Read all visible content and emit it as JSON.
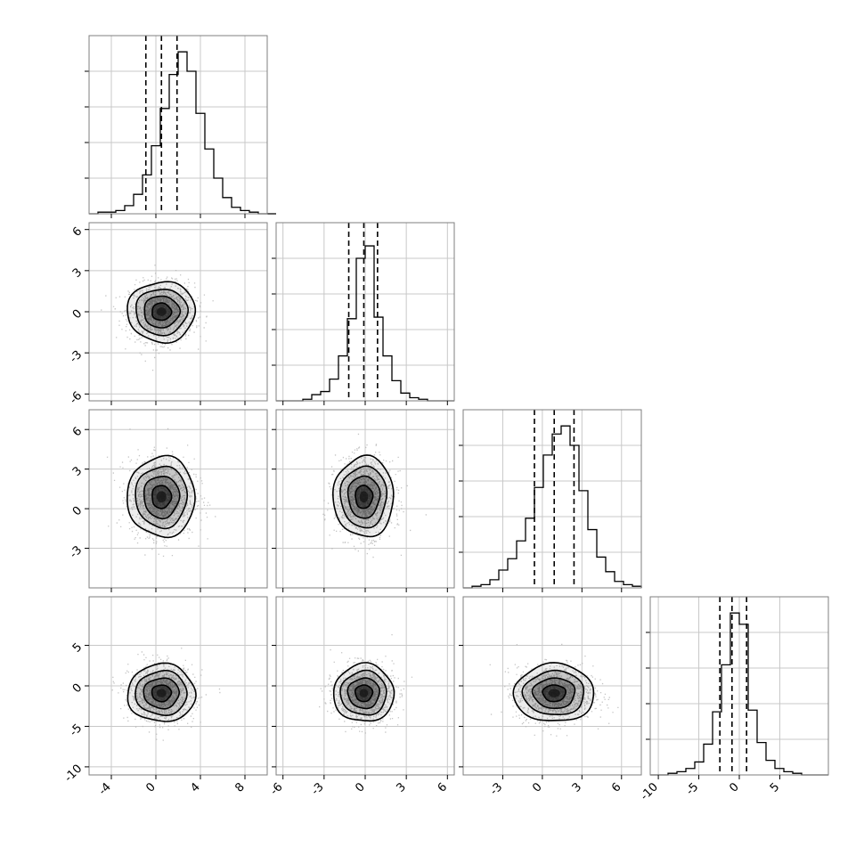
{
  "chart_data": {
    "type": "corner",
    "variables": [
      {
        "range": [
          -6,
          10
        ],
        "xticks": [
          -4,
          0,
          4,
          8
        ],
        "yticks": [],
        "quantiles": [
          -0.9,
          0.5,
          1.9
        ],
        "hist": {
          "x0": -6,
          "bin": 0.8,
          "values": [
            0,
            0.01,
            0.01,
            0.02,
            0.05,
            0.12,
            0.24,
            0.42,
            0.65,
            0.86,
            1.0,
            0.88,
            0.62,
            0.4,
            0.22,
            0.1,
            0.04,
            0.02,
            0.01,
            0,
            0
          ],
          "ymax": 1.1
        }
      },
      {
        "range": [
          -6.5,
          6.5
        ],
        "xticks": [
          -6,
          -3,
          0,
          3,
          6
        ],
        "yticks": [
          -6,
          -3,
          0,
          3,
          6
        ],
        "quantiles": [
          -1.2,
          -0.1,
          0.9
        ],
        "hist": {
          "x0": -6.5,
          "bin": 0.65,
          "values": [
            0,
            0,
            0,
            0.01,
            0.04,
            0.06,
            0.14,
            0.29,
            0.53,
            0.92,
            1.0,
            0.54,
            0.29,
            0.13,
            0.05,
            0.02,
            0.01,
            0,
            0,
            0
          ],
          "ymax": 1.15
        }
      },
      {
        "range": [
          -6,
          7.5
        ],
        "xticks": [
          -3,
          0,
          3,
          6
        ],
        "yticks": [
          -3,
          0,
          3,
          6
        ],
        "quantiles": [
          -0.6,
          0.9,
          2.4
        ],
        "hist": {
          "x0": -6,
          "bin": 0.675,
          "values": [
            0,
            0.01,
            0.02,
            0.05,
            0.11,
            0.18,
            0.29,
            0.43,
            0.62,
            0.82,
            0.95,
            1.0,
            0.88,
            0.6,
            0.36,
            0.19,
            0.1,
            0.04,
            0.02,
            0.01
          ],
          "ymax": 1.1
        }
      },
      {
        "range": [
          -11,
          11
        ],
        "xticks": [
          -10,
          -5,
          0,
          5
        ],
        "yticks": [
          -10,
          -5,
          0,
          5
        ],
        "quantiles": [
          -2.4,
          -0.9,
          0.9
        ],
        "hist": {
          "x0": -11,
          "bin": 1.1,
          "values": [
            0,
            0,
            0.01,
            0.02,
            0.04,
            0.08,
            0.19,
            0.39,
            0.68,
            1.0,
            0.93,
            0.4,
            0.2,
            0.09,
            0.04,
            0.02,
            0.01,
            0,
            0,
            0
          ],
          "ymax": 1.1
        }
      }
    ],
    "pairs": [
      {
        "row": 1,
        "col": 0,
        "mx": 0.5,
        "my": 0.0,
        "sx": 1.45,
        "sy": 1.05,
        "rho": 0.0
      },
      {
        "row": 2,
        "col": 0,
        "mx": 0.5,
        "my": 0.9,
        "sx": 1.45,
        "sy": 1.45,
        "rho": 0.0
      },
      {
        "row": 2,
        "col": 1,
        "mx": -0.1,
        "my": 0.9,
        "sx": 1.05,
        "sy": 1.45,
        "rho": 0.0
      },
      {
        "row": 3,
        "col": 0,
        "mx": 0.5,
        "my": -0.9,
        "sx": 1.45,
        "sy": 1.7,
        "rho": 0.0
      },
      {
        "row": 3,
        "col": 1,
        "mx": -0.1,
        "my": -0.9,
        "sx": 1.05,
        "sy": 1.7,
        "rho": 0.0
      },
      {
        "row": 3,
        "col": 2,
        "mx": 0.9,
        "my": -0.9,
        "sx": 1.45,
        "sy": 1.7,
        "rho": 0.0
      }
    ],
    "contour_levels": [
      0.6,
      1.1,
      1.6,
      2.1
    ],
    "grid": true,
    "colors": {
      "hist": "#000000",
      "points": "#b0b0b0",
      "density": "#000000",
      "grid": "#c8c8c8",
      "frame": "#7f7f7f"
    }
  }
}
